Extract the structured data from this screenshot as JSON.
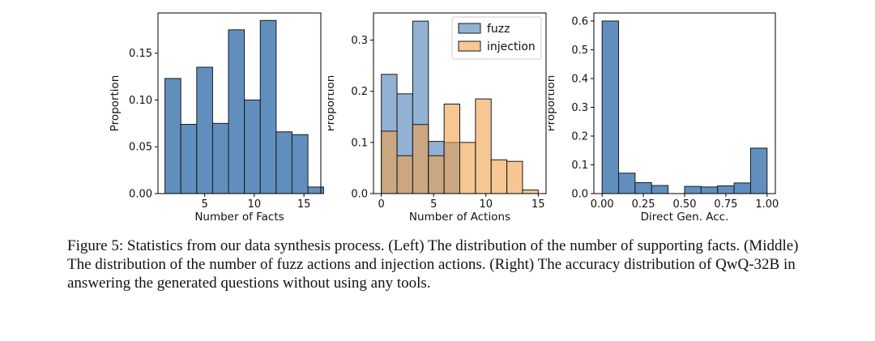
{
  "chart_data": [
    {
      "type": "bar",
      "panel": "left",
      "xlabel": "Number of Facts",
      "ylabel": "Proportion",
      "xlim": [
        0.3,
        16.7
      ],
      "ylim": [
        0,
        0.193
      ],
      "xticks": [
        5,
        10,
        15
      ],
      "yticks": [
        0.0,
        0.05,
        0.1,
        0.15
      ],
      "xtick_labels": [
        "5",
        "10",
        "15"
      ],
      "ytick_labels": [
        "0.00",
        "0.05",
        "0.10",
        "0.15"
      ],
      "bin_edges": [
        1.0,
        2.6,
        4.2,
        5.8,
        7.4,
        9.0,
        10.6,
        12.2,
        13.8,
        15.4,
        17.0
      ],
      "series": [
        {
          "name": "facts",
          "color": "#4a7fb5",
          "opacity": 0.88,
          "values": [
            0.123,
            0.074,
            0.135,
            0.075,
            0.175,
            0.1,
            0.185,
            0.066,
            0.063,
            0.007
          ]
        }
      ]
    },
    {
      "type": "bar",
      "panel": "middle",
      "xlabel": "Number of Actions",
      "ylabel": "Proportion",
      "xlim": [
        -0.75,
        15.75
      ],
      "ylim": [
        0,
        0.353
      ],
      "xticks": [
        0,
        5,
        10,
        15
      ],
      "yticks": [
        0.0,
        0.1,
        0.2,
        0.3
      ],
      "xtick_labels": [
        "0",
        "5",
        "10",
        "15"
      ],
      "ytick_labels": [
        "0.0",
        "0.1",
        "0.2",
        "0.3"
      ],
      "legend_position": "top-right",
      "series": [
        {
          "name": "fuzz",
          "color": "#4a7fb5",
          "opacity": 0.6,
          "bin_edges": [
            0.0,
            1.5,
            3.0,
            4.5,
            6.0,
            7.5
          ],
          "values": [
            0.233,
            0.195,
            0.337,
            0.102,
            0.1
          ]
        },
        {
          "name": "injection",
          "color": "#f0a04b",
          "opacity": 0.6,
          "bin_edges": [
            0.0,
            1.5,
            3.0,
            4.5,
            6.0,
            7.5,
            9.0,
            10.5,
            12.0,
            13.5,
            15.0
          ],
          "values": [
            0.122,
            0.074,
            0.135,
            0.074,
            0.175,
            0.1,
            0.185,
            0.066,
            0.063,
            0.007
          ]
        }
      ]
    },
    {
      "type": "bar",
      "panel": "right",
      "xlabel": "Direct Gen. Acc.",
      "ylabel": "Proportion",
      "xlim": [
        -0.05,
        1.05
      ],
      "ylim": [
        0,
        0.628
      ],
      "xticks": [
        0.0,
        0.25,
        0.5,
        0.75,
        1.0
      ],
      "yticks": [
        0.0,
        0.1,
        0.2,
        0.3,
        0.4,
        0.5,
        0.6
      ],
      "xtick_labels": [
        "0.00",
        "0.25",
        "0.50",
        "0.75",
        "1.00"
      ],
      "ytick_labels": [
        "0.0",
        "0.1",
        "0.2",
        "0.3",
        "0.4",
        "0.5",
        "0.6"
      ],
      "bin_edges": [
        0.0,
        0.1,
        0.2,
        0.3,
        0.4,
        0.5,
        0.6,
        0.7,
        0.8,
        0.9,
        1.0
      ],
      "series": [
        {
          "name": "accuracy",
          "color": "#4a7fb5",
          "opacity": 0.88,
          "values": [
            0.6,
            0.071,
            0.038,
            0.028,
            0.0,
            0.025,
            0.023,
            0.027,
            0.037,
            0.158
          ]
        }
      ]
    }
  ],
  "caption": {
    "text": "Figure 5: Statistics from our data synthesis process. (Left) The distribution of the number of supporting facts. (Middle) The distribution of the number of fuzz actions and injection actions. (Right) The accuracy distribution of QwQ-32B in answering the generated questions without using any tools."
  }
}
